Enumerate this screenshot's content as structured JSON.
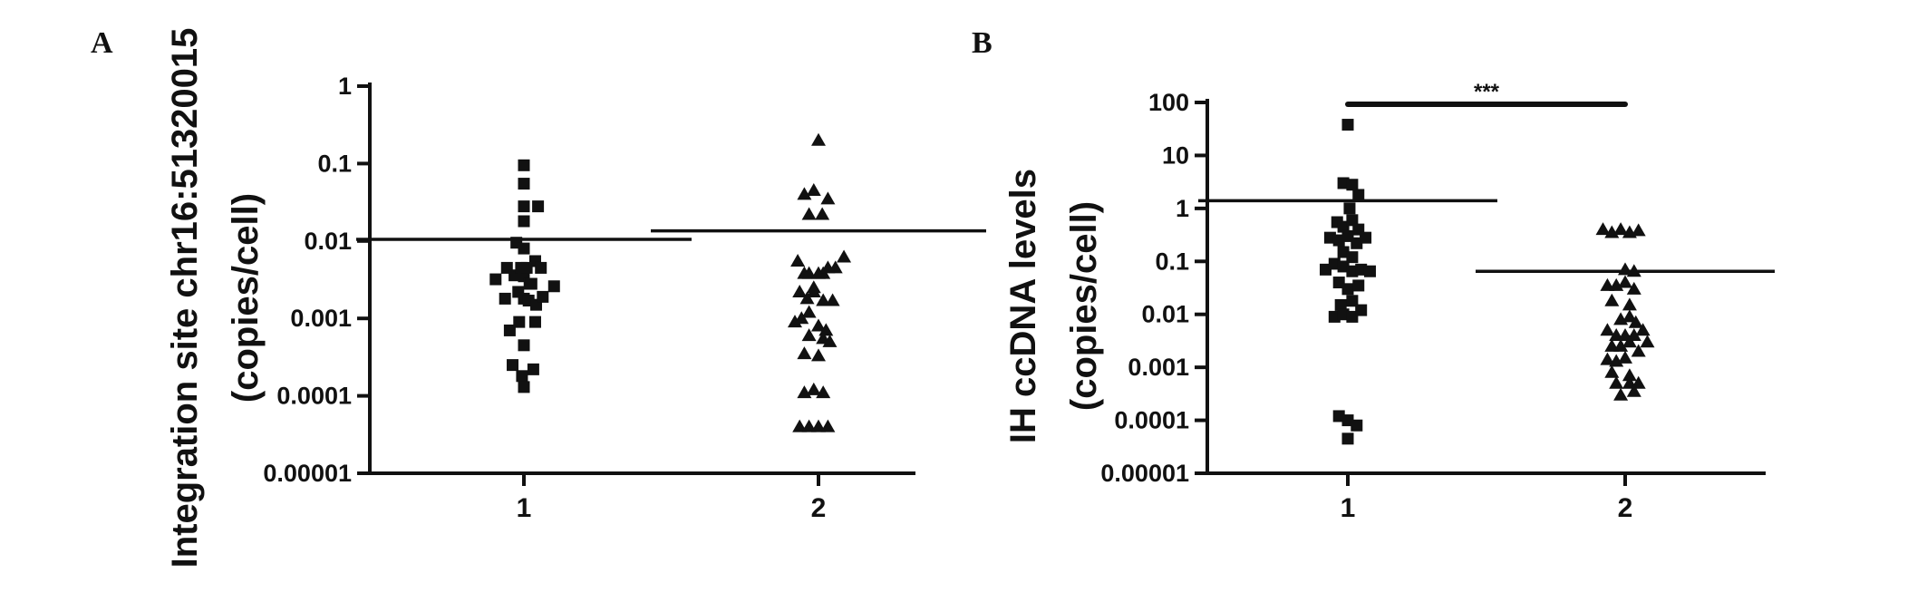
{
  "chart_data": [
    {
      "type": "scatter",
      "panel": "A",
      "ylabel_lines": [
        "Integration site chr16:51320015",
        "(copies/cell)"
      ],
      "yscale": "log",
      "ylim": [
        1e-05,
        1
      ],
      "yticks": [
        1,
        0.1,
        0.01,
        0.001,
        0.0001,
        1e-05
      ],
      "ytick_labels": [
        "1",
        "0.1",
        "0.01",
        "0.001",
        "0.0001",
        "0.00001"
      ],
      "categories": [
        "1",
        "2"
      ],
      "series": [
        {
          "marker": "square",
          "group": "1",
          "means": 0.0105,
          "points": [
            [
              -0.3,
              0.0032
            ],
            [
              -0.2,
              0.0018
            ],
            [
              -0.18,
              0.0045
            ],
            [
              -0.15,
              0.0007
            ],
            [
              -0.12,
              0.00025
            ],
            [
              -0.1,
              0.0036
            ],
            [
              -0.08,
              0.0095
            ],
            [
              -0.06,
              0.0022
            ],
            [
              -0.05,
              0.0009
            ],
            [
              -0.03,
              0.0045
            ],
            [
              -0.02,
              0.00018
            ],
            [
              0,
              0.095
            ],
            [
              0,
              0.055
            ],
            [
              0,
              0.028
            ],
            [
              0,
              0.018
            ],
            [
              0,
              0.008
            ],
            [
              0,
              0.0035
            ],
            [
              0,
              0.0018
            ],
            [
              0,
              0.00045
            ],
            [
              0,
              0.00013
            ],
            [
              0.03,
              0.0045
            ],
            [
              0.05,
              0.0017
            ],
            [
              0.06,
              0.0028
            ],
            [
              0.08,
              0.0028
            ],
            [
              0.1,
              0.00022
            ],
            [
              0.12,
              0.0009
            ],
            [
              0.12,
              0.0055
            ],
            [
              0.13,
              0.0015
            ],
            [
              0.15,
              0.028
            ],
            [
              0.18,
              0.0045
            ],
            [
              0.2,
              0.0019
            ],
            [
              0.32,
              0.0026
            ]
          ]
        },
        {
          "marker": "triangle",
          "group": "2",
          "means": 0.0135,
          "points": [
            [
              0,
              0.2
            ],
            [
              -0.15,
              0.04
            ],
            [
              -0.1,
              0.022
            ],
            [
              -0.05,
              0.045
            ],
            [
              0.04,
              0.022
            ],
            [
              0.1,
              0.035
            ],
            [
              -0.22,
              0.0055
            ],
            [
              -0.15,
              0.0038
            ],
            [
              -0.1,
              0.0038
            ],
            [
              -0.05,
              0.0025
            ],
            [
              0,
              0.0038
            ],
            [
              0.05,
              0.0038
            ],
            [
              0.1,
              0.0045
            ],
            [
              0.18,
              0.0045
            ],
            [
              0.27,
              0.0062
            ],
            [
              -0.2,
              0.0022
            ],
            [
              -0.12,
              0.0018
            ],
            [
              -0.05,
              0.0022
            ],
            [
              0.05,
              0.0017
            ],
            [
              0.15,
              0.0017
            ],
            [
              -0.25,
              0.0009
            ],
            [
              -0.18,
              0.001
            ],
            [
              -0.1,
              0.0012
            ],
            [
              0,
              0.0008
            ],
            [
              0.08,
              0.0007
            ],
            [
              0.12,
              0.0005
            ],
            [
              -0.1,
              0.0006
            ],
            [
              0.05,
              0.00055
            ],
            [
              -0.15,
              0.00035
            ],
            [
              0,
              0.00033
            ],
            [
              -0.15,
              0.00011
            ],
            [
              -0.05,
              0.00012
            ],
            [
              0.05,
              0.00011
            ],
            [
              -0.2,
              4e-05
            ],
            [
              -0.1,
              4e-05
            ],
            [
              0,
              4e-05
            ],
            [
              0.1,
              4e-05
            ]
          ]
        }
      ]
    },
    {
      "type": "scatter",
      "panel": "B",
      "ylabel_lines": [
        "IH ccDNA levels",
        "(copies/cell)"
      ],
      "yscale": "log",
      "ylim": [
        1e-05,
        100
      ],
      "yticks": [
        100,
        10,
        1,
        0.1,
        0.01,
        0.001,
        0.0001,
        1e-05
      ],
      "ytick_labels": [
        "100",
        "10",
        "1",
        "0.1",
        "0.01",
        "0.001",
        "0.0001",
        "0.00001"
      ],
      "categories": [
        "1",
        "2"
      ],
      "annotation": "***",
      "series": [
        {
          "marker": "square",
          "group": "1",
          "means": 1.4,
          "points": [
            [
              0,
              38
            ],
            [
              -0.05,
              3
            ],
            [
              0.05,
              2.8
            ],
            [
              0.12,
              1.8
            ],
            [
              0.02,
              1.0
            ],
            [
              -0.12,
              0.55
            ],
            [
              -0.05,
              0.45
            ],
            [
              0.05,
              0.6
            ],
            [
              0.12,
              0.4
            ],
            [
              -0.2,
              0.28
            ],
            [
              -0.1,
              0.25
            ],
            [
              0,
              0.3
            ],
            [
              0.1,
              0.22
            ],
            [
              0.2,
              0.28
            ],
            [
              -0.05,
              0.15
            ],
            [
              0.05,
              0.12
            ],
            [
              -0.25,
              0.07
            ],
            [
              -0.15,
              0.09
            ],
            [
              -0.05,
              0.08
            ],
            [
              0.05,
              0.065
            ],
            [
              0.15,
              0.07
            ],
            [
              0.25,
              0.065
            ],
            [
              -0.1,
              0.04
            ],
            [
              0,
              0.03
            ],
            [
              0.12,
              0.035
            ],
            [
              -0.08,
              0.015
            ],
            [
              0.05,
              0.018
            ],
            [
              -0.15,
              0.009
            ],
            [
              -0.05,
              0.01
            ],
            [
              0.05,
              0.009
            ],
            [
              0.15,
              0.012
            ],
            [
              -0.1,
              0.00012
            ],
            [
              0,
              0.0001
            ],
            [
              0.1,
              8e-05
            ],
            [
              0,
              4.5e-05
            ]
          ]
        },
        {
          "marker": "triangle",
          "group": "2",
          "means": 0.065,
          "points": [
            [
              -0.25,
              0.4
            ],
            [
              -0.15,
              0.35
            ],
            [
              -0.05,
              0.4
            ],
            [
              0.05,
              0.35
            ],
            [
              0.15,
              0.38
            ],
            [
              0,
              0.07
            ],
            [
              0.1,
              0.065
            ],
            [
              -0.2,
              0.035
            ],
            [
              -0.1,
              0.035
            ],
            [
              0,
              0.04
            ],
            [
              0.1,
              0.03
            ],
            [
              -0.15,
              0.018
            ],
            [
              0.05,
              0.015
            ],
            [
              -0.05,
              0.008
            ],
            [
              0.05,
              0.009
            ],
            [
              0.12,
              0.007
            ],
            [
              -0.2,
              0.005
            ],
            [
              -0.1,
              0.004
            ],
            [
              0,
              0.004
            ],
            [
              0.1,
              0.004
            ],
            [
              0.2,
              0.005
            ],
            [
              -0.15,
              0.0025
            ],
            [
              -0.05,
              0.0025
            ],
            [
              0.05,
              0.003
            ],
            [
              0.15,
              0.002
            ],
            [
              0.25,
              0.003
            ],
            [
              -0.2,
              0.0014
            ],
            [
              -0.1,
              0.0013
            ],
            [
              0,
              0.0015
            ],
            [
              -0.15,
              0.0008
            ],
            [
              0.05,
              0.0007
            ],
            [
              -0.1,
              0.0005
            ],
            [
              0.05,
              0.0005
            ],
            [
              0.15,
              0.0005
            ],
            [
              -0.05,
              0.0003
            ],
            [
              0.1,
              0.00035
            ]
          ]
        }
      ]
    }
  ]
}
